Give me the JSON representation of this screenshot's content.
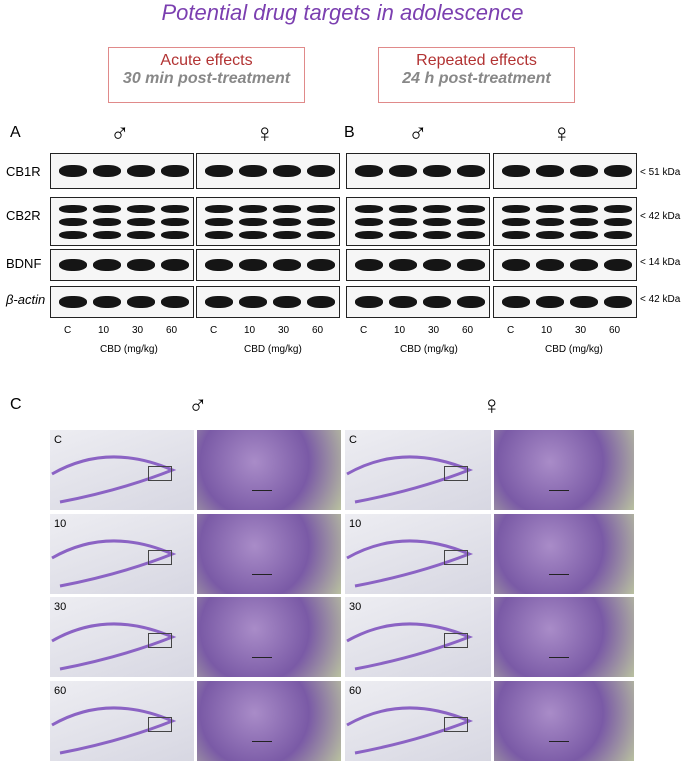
{
  "title": "Potential drug targets in adolescence",
  "boxes": [
    {
      "line1": "Acute effects",
      "line2": "30 min post-treatment"
    },
    {
      "line1": "Repeated effects",
      "line2": "24 h post-treatment"
    }
  ],
  "panels": {
    "a": "A",
    "b": "B",
    "c": "C"
  },
  "sex": {
    "male": "♂",
    "female": "♀"
  },
  "rows": [
    "CB1R",
    "CB2R",
    "BDNF",
    "β-actin"
  ],
  "kda": [
    "< 51 kDa",
    "< 42 kDa",
    "< 14 kDa",
    "< 42 kDa"
  ],
  "doses": [
    "C",
    "10",
    "30",
    "60"
  ],
  "axis_label": "CBD (mg/kg)",
  "histo_labels": [
    "C",
    "10",
    "30",
    "60"
  ]
}
